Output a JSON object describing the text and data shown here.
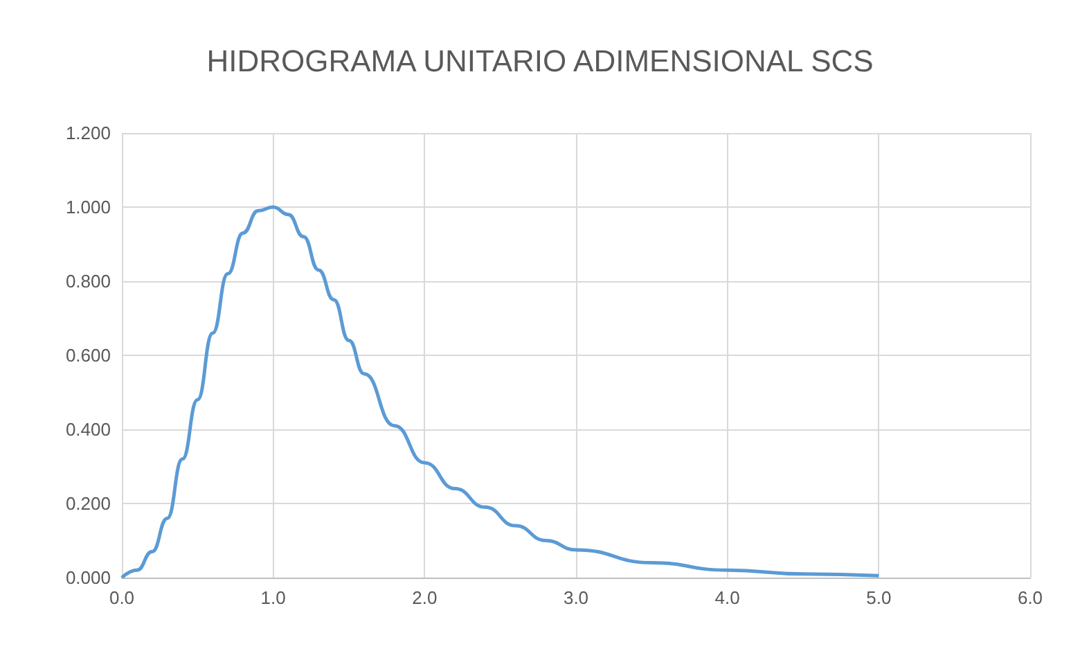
{
  "chart_data": {
    "type": "line",
    "title": "HIDROGRAMA UNITARIO ADIMENSIONAL SCS",
    "x": [
      0,
      0.1,
      0.2,
      0.3,
      0.4,
      0.5,
      0.6,
      0.7,
      0.8,
      0.9,
      1.0,
      1.1,
      1.2,
      1.3,
      1.4,
      1.5,
      1.6,
      1.8,
      2.0,
      2.2,
      2.4,
      2.6,
      2.8,
      3.0,
      3.5,
      4.0,
      4.5,
      5.0
    ],
    "series": [
      {
        "color": "#5b9bd5",
        "values": [
          0,
          0.02,
          0.07,
          0.16,
          0.32,
          0.48,
          0.66,
          0.82,
          0.93,
          0.99,
          1.0,
          0.98,
          0.92,
          0.83,
          0.75,
          0.64,
          0.55,
          0.41,
          0.31,
          0.24,
          0.19,
          0.14,
          0.1,
          0.075,
          0.04,
          0.02,
          0.01,
          0.005
        ]
      }
    ],
    "xlim": [
      0,
      6
    ],
    "xticks": [
      {
        "value": 0,
        "label": "0.0"
      },
      {
        "value": 1,
        "label": "1.0"
      },
      {
        "value": 2,
        "label": "2.0"
      },
      {
        "value": 3,
        "label": "3.0"
      },
      {
        "value": 4,
        "label": "4.0"
      },
      {
        "value": 5,
        "label": "5.0"
      },
      {
        "value": 6,
        "label": "6.0"
      }
    ],
    "ylim": [
      0,
      1.2
    ],
    "yticks": [
      {
        "value": 0,
        "label": "0.000"
      },
      {
        "value": 0.2,
        "label": "0.200"
      },
      {
        "value": 0.4,
        "label": "0.400"
      },
      {
        "value": 0.6,
        "label": "0.600"
      },
      {
        "value": 0.8,
        "label": "0.800"
      },
      {
        "value": 1,
        "label": "1.000"
      },
      {
        "value": 1.2,
        "label": "1.200"
      }
    ],
    "grid": true,
    "marker": "none",
    "line_style": "solid"
  }
}
